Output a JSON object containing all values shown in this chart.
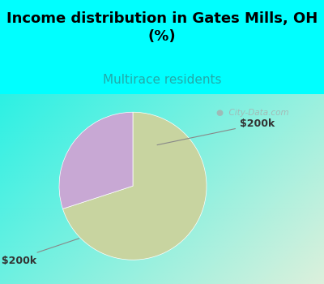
{
  "title": "Income distribution in Gates Mills, OH\n(%)",
  "subtitle": "Multirace residents",
  "slices": [
    70.0,
    30.0
  ],
  "labels": [
    "> $200k",
    "$200k"
  ],
  "colors": [
    "#c8d4a0",
    "#c8a8d4"
  ],
  "startangle": 90,
  "bg_top": "#00ffff",
  "title_fontsize": 13,
  "subtitle_fontsize": 11,
  "subtitle_color": "#22aaaa",
  "label_fontsize": 9,
  "watermark": "  City-Data.com",
  "watermark_color": "#aaaaaa",
  "label_color": "#333333"
}
